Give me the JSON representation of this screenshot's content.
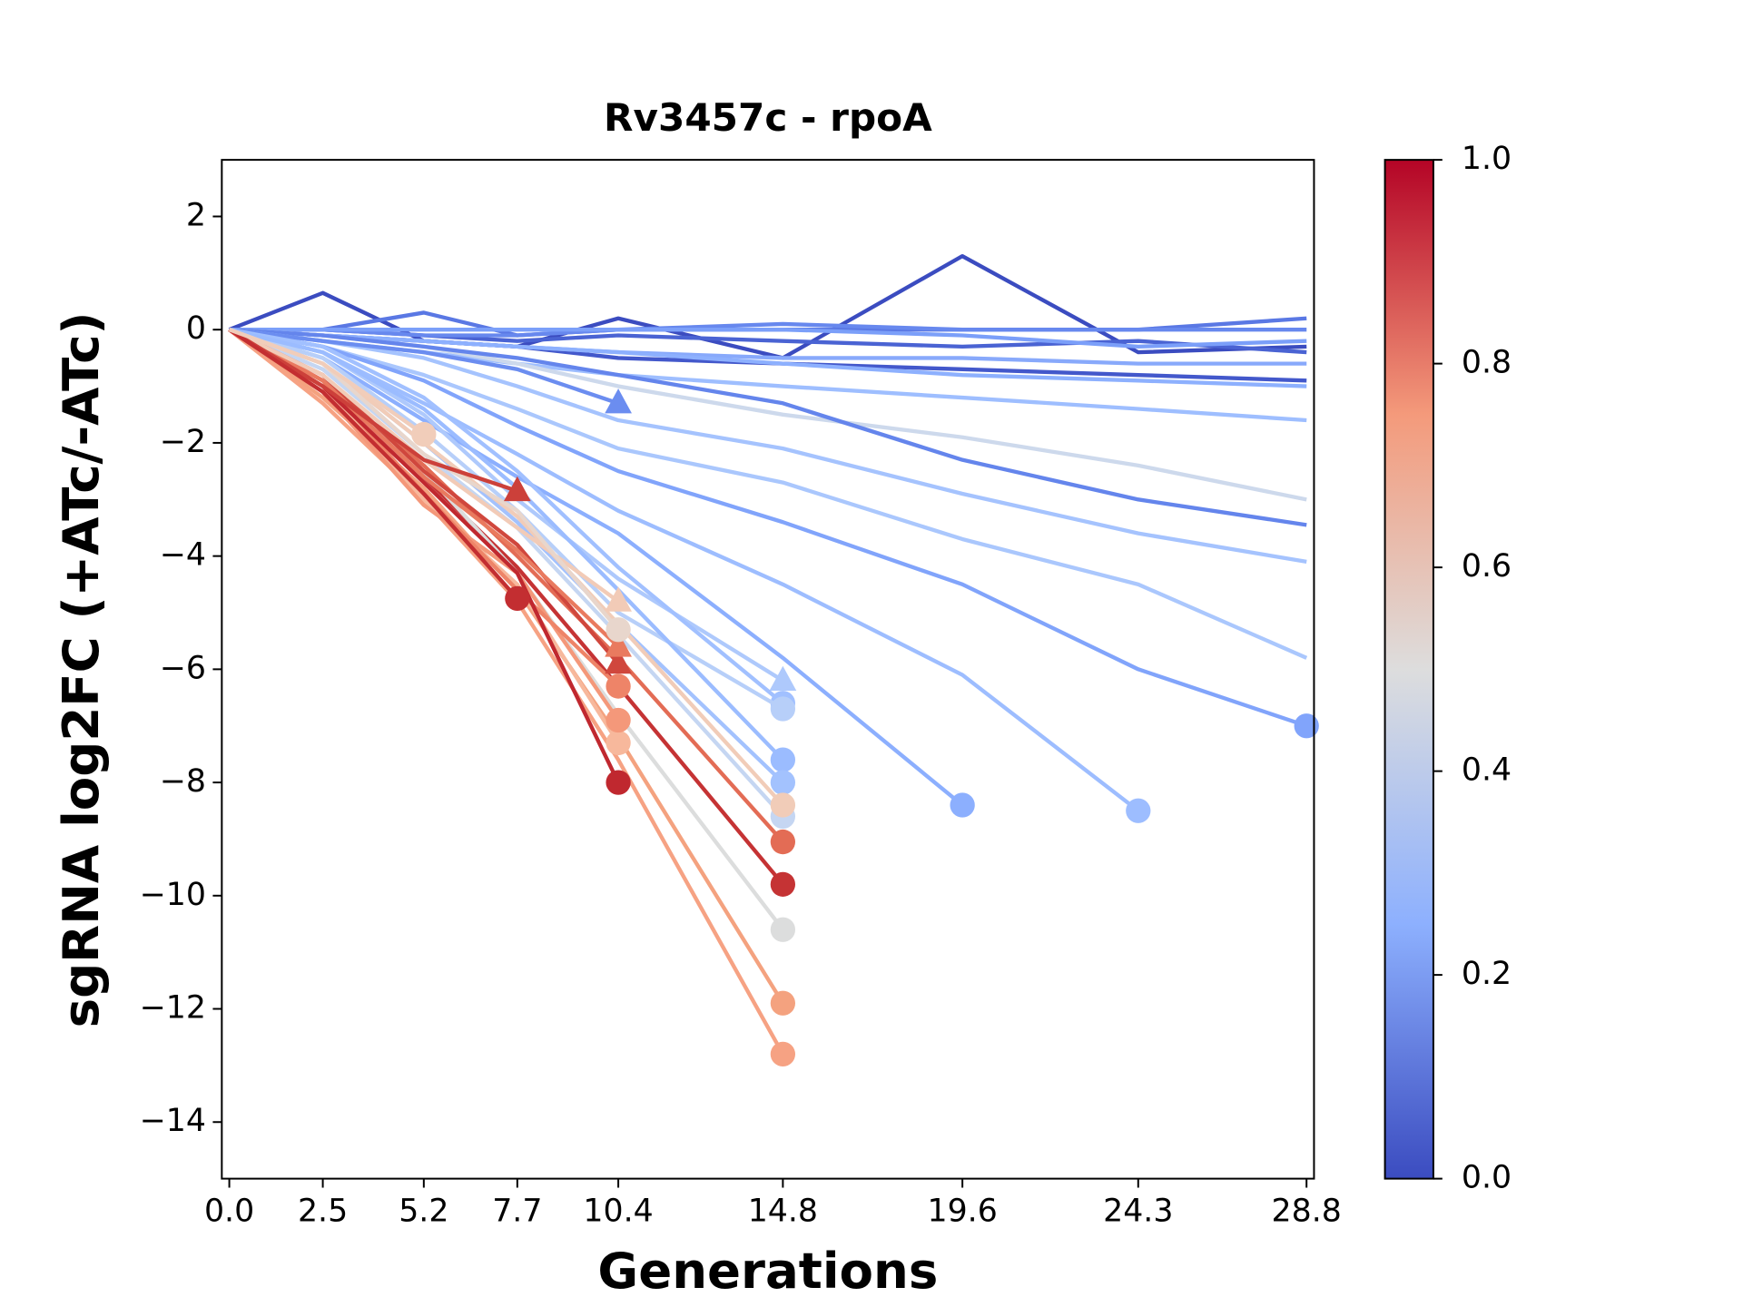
{
  "chart_data": {
    "type": "line",
    "title": "Rv3457c - rpoA",
    "xlabel": "Generations",
    "ylabel": "sgRNA log2FC (+ATc/-ATc)",
    "x": [
      {
        "value": 0,
        "label": "0.0"
      },
      2.5,
      5.2,
      7.7,
      10.4,
      14.8,
      19.6,
      24.3,
      28.8
    ],
    "xlim": [
      -0.2,
      29.0
    ],
    "xticks": [
      {
        "value": 0,
        "label": "0.0"
      },
      2.5,
      5.2,
      7.7,
      10.4,
      14.8,
      19.6,
      24.3,
      28.8
    ],
    "ylim": [
      -15,
      3
    ],
    "yticks": [
      {
        "value": -14,
        "label": "−14"
      },
      {
        "value": -12,
        "label": "−12"
      },
      {
        "value": -10,
        "label": "−10"
      },
      {
        "value": -8,
        "label": "−8"
      },
      {
        "value": -6,
        "label": "−6"
      },
      {
        "value": -4,
        "label": "−4"
      },
      {
        "value": -2,
        "label": "−2"
      },
      0,
      2
    ],
    "colorbar": {
      "lim": [
        0,
        1
      ],
      "ticks": [
        {
          "value": 0,
          "label": "0.0"
        },
        0.2,
        0.4,
        0.6,
        0.8,
        {
          "value": 1,
          "label": "1.0"
        }
      ],
      "colors": [
        "#3b4cc0",
        "#8db0fe",
        "#dddddd",
        "#f49a7b",
        "#b40426"
      ]
    },
    "series": [
      {
        "color": "#3b4cc0",
        "marker": "none",
        "values": [
          0,
          0.65,
          -0.2,
          -0.3,
          0.2,
          -0.5,
          1.3,
          -0.4,
          -0.3
        ]
      },
      {
        "color": "#4a63d3",
        "marker": "none",
        "values": [
          0,
          0,
          -0.1,
          -0.2,
          -0.1,
          -0.2,
          -0.3,
          -0.2,
          -0.4
        ]
      },
      {
        "color": "#5a78e4",
        "marker": "none",
        "values": [
          0,
          0,
          0.3,
          -0.1,
          0,
          0,
          0,
          0,
          0.2
        ]
      },
      {
        "color": "#6788ee",
        "marker": "none",
        "values": [
          0,
          0,
          -0.1,
          -0.1,
          0,
          0.1,
          0,
          0,
          0
        ]
      },
      {
        "color": "#7b9ff9",
        "marker": "none",
        "values": [
          0,
          0,
          0,
          0,
          0,
          0,
          -0.1,
          -0.3,
          -0.2
        ]
      },
      {
        "color": "#4358cb",
        "marker": "none",
        "values": [
          0,
          -0.1,
          -0.2,
          -0.3,
          -0.5,
          -0.6,
          -0.7,
          -0.8,
          -0.9
        ]
      },
      {
        "color": "#88a9fb",
        "marker": "none",
        "values": [
          0,
          -0.1,
          -0.2,
          -0.3,
          -0.4,
          -0.5,
          -0.5,
          -0.6,
          -0.6
        ]
      },
      {
        "color": "#8db0fe",
        "marker": "none",
        "values": [
          0,
          -0.1,
          -0.2,
          -0.3,
          -0.4,
          -0.6,
          -0.8,
          -0.9,
          -1.0
        ]
      },
      {
        "color": "#9ebeff",
        "marker": "none",
        "values": [
          0,
          -0.2,
          -0.4,
          -0.6,
          -0.8,
          -1.0,
          -1.2,
          -1.4,
          -1.6
        ]
      },
      {
        "color": "#cdd9ec",
        "marker": "none",
        "values": [
          0,
          -0.1,
          -0.3,
          -0.6,
          -1.0,
          -1.5,
          -1.9,
          -2.4,
          -3.0
        ]
      },
      {
        "color": "#6485ec",
        "marker": "none",
        "values": [
          0,
          -0.1,
          -0.3,
          -0.5,
          -0.8,
          -1.3,
          -2.3,
          -3.0,
          -3.45
        ]
      },
      {
        "color": "#a5c3fe",
        "marker": "none",
        "values": [
          0,
          -0.2,
          -0.5,
          -1.0,
          -1.6,
          -2.1,
          -2.9,
          -3.6,
          -4.1
        ]
      },
      {
        "color": "#aac7fd",
        "marker": "none",
        "values": [
          0,
          -0.3,
          -0.8,
          -1.4,
          -2.1,
          -2.7,
          -3.7,
          -4.5,
          -5.8
        ]
      },
      {
        "color": "#81a4fb",
        "marker": "circle",
        "values": [
          0,
          -0.3,
          -0.9,
          -1.7,
          -2.5,
          -3.4,
          -4.5,
          -6.0,
          -7.0
        ]
      },
      {
        "color": "#9dbdff",
        "marker": "circle",
        "values": [
          0,
          -0.4,
          -1.3,
          -2.2,
          -3.2,
          -4.5,
          -6.1,
          -8.5,
          null
        ]
      },
      {
        "color": "#8caffe",
        "marker": "circle",
        "values": [
          0,
          -0.5,
          -1.6,
          -2.6,
          -3.6,
          -5.8,
          -8.4,
          null,
          null
        ]
      },
      {
        "color": "#6b8df0",
        "marker": "triangle",
        "values": [
          0,
          -0.2,
          -0.4,
          -0.7,
          -1.3,
          null,
          null,
          null,
          null
        ]
      },
      {
        "color": "#aec9fc",
        "marker": "triangle",
        "values": [
          0,
          -0.4,
          -1.5,
          -3.0,
          -4.4,
          -6.2,
          null,
          null,
          null
        ]
      },
      {
        "color": "#a1c0ff",
        "marker": "circle",
        "values": [
          0,
          -0.3,
          -1.2,
          -2.5,
          -4.2,
          -6.6,
          null,
          null,
          null
        ]
      },
      {
        "color": "#b7cff9",
        "marker": "circle",
        "values": [
          0,
          -0.5,
          -1.8,
          -3.2,
          -5.0,
          -6.7,
          null,
          null,
          null
        ]
      },
      {
        "color": "#9bbcff",
        "marker": "circle",
        "values": [
          0,
          -0.4,
          -1.4,
          -2.8,
          -4.6,
          -7.6,
          null,
          null,
          null
        ]
      },
      {
        "color": "#a3c2fe",
        "marker": "circle",
        "values": [
          0,
          -0.6,
          -2.0,
          -3.4,
          -5.2,
          -8.0,
          null,
          null,
          null
        ]
      },
      {
        "color": "#c5d6f2",
        "marker": "circle",
        "values": [
          0,
          -0.7,
          -2.2,
          -3.5,
          -5.4,
          -8.6,
          null,
          null,
          null
        ]
      },
      {
        "color": "#f1ccb8",
        "marker": "circle",
        "values": [
          0,
          -0.6,
          -2.0,
          -3.3,
          -5.2,
          -8.4,
          null,
          null,
          null
        ]
      },
      {
        "color": "#e36c55",
        "marker": "circle",
        "values": [
          0,
          -0.9,
          -2.4,
          -4.0,
          -5.8,
          -9.05,
          null,
          null,
          null
        ]
      },
      {
        "color": "#c53334",
        "marker": "circle",
        "values": [
          0,
          -0.9,
          -2.6,
          -4.2,
          -6.3,
          -9.8,
          null,
          null,
          null
        ]
      },
      {
        "color": "#dcdddd",
        "marker": "circle",
        "values": [
          0,
          -0.8,
          -2.5,
          -4.3,
          -6.8,
          -10.6,
          null,
          null,
          null
        ]
      },
      {
        "color": "#f4a27f",
        "marker": "circle",
        "values": [
          0,
          -1.2,
          -2.8,
          -4.6,
          -7.2,
          -11.9,
          null,
          null,
          null
        ]
      },
      {
        "color": "#f6a283",
        "marker": "circle",
        "values": [
          0,
          -1.3,
          -3.0,
          -4.8,
          -7.6,
          -12.8,
          null,
          null,
          null
        ]
      },
      {
        "color": "#f7b89c",
        "marker": "circle",
        "values": [
          0,
          -1.0,
          -3.0,
          -4.5,
          -7.3,
          null,
          null,
          null,
          null
        ]
      },
      {
        "color": "#f4987a",
        "marker": "circle",
        "values": [
          0,
          -1.1,
          -3.1,
          -4.3,
          -6.9,
          null,
          null,
          null,
          null
        ]
      },
      {
        "color": "#ee8468",
        "marker": "circle",
        "values": [
          0,
          -0.9,
          -2.9,
          -4.6,
          -6.3,
          null,
          null,
          null,
          null
        ]
      },
      {
        "color": "#c0282f",
        "marker": "circle",
        "values": [
          0,
          -1.0,
          -2.7,
          -4.3,
          -8.0,
          null,
          null,
          null,
          null
        ]
      },
      {
        "color": "#d0473d",
        "marker": "triangle",
        "values": [
          0,
          -0.8,
          -2.5,
          -3.8,
          -5.9,
          null,
          null,
          null,
          null
        ]
      },
      {
        "color": "#e97a5f",
        "marker": "triangle",
        "values": [
          0,
          -0.9,
          -2.6,
          -3.9,
          -5.6,
          null,
          null,
          null,
          null
        ]
      },
      {
        "color": "#f2cbb7",
        "marker": "triangle",
        "values": [
          0,
          -0.8,
          -2.3,
          -3.5,
          -4.8,
          null,
          null,
          null,
          null
        ]
      },
      {
        "color": "#e8d6cc",
        "marker": "circle",
        "values": [
          0,
          -0.6,
          -2.2,
          -3.2,
          -5.3,
          null,
          null,
          null,
          null
        ]
      },
      {
        "color": "#cc403a",
        "marker": "triangle",
        "values": [
          0,
          -1.0,
          -2.3,
          -2.85,
          null,
          null,
          null,
          null,
          null
        ]
      },
      {
        "color": "#c32e31",
        "marker": "circle",
        "values": [
          0,
          -1.1,
          -2.9,
          -4.75,
          null,
          null,
          null,
          null,
          null
        ]
      },
      {
        "color": "#f1cdba",
        "marker": "circle",
        "values": [
          0,
          -0.6,
          -1.85,
          null,
          null,
          null,
          null,
          null,
          null
        ]
      }
    ]
  }
}
